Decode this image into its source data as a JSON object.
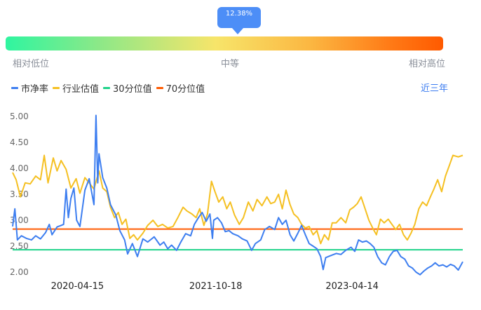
{
  "marker": {
    "label": "12.38%"
  },
  "scale": {
    "low": "相对低位",
    "mid": "中等",
    "high": "相对高位"
  },
  "legend": [
    {
      "label": "市净率",
      "color": "#3d7ef0"
    },
    {
      "label": "行业估值",
      "color": "#f5c022"
    },
    {
      "label": "30分位值",
      "color": "#1fd28a"
    },
    {
      "label": "70分位值",
      "color": "#ff5a00"
    }
  ],
  "range_label": "近三年",
  "chart_data": {
    "type": "line",
    "ylim": [
      2.0,
      5.0
    ],
    "yticks": [
      "2.00",
      "2.50",
      "3.00",
      "3.50",
      "4.00",
      "4.50",
      "5.00"
    ],
    "x_range": [
      "2019-08-01",
      "2024-06-28"
    ],
    "xticks": [
      "2020-04-15",
      "2021-10-18",
      "2023-04-14"
    ],
    "reference_lines": [
      {
        "name": "30分位值",
        "value": 2.43,
        "color": "#1fd28a"
      },
      {
        "name": "70分位值",
        "value": 2.83,
        "color": "#ff5a00"
      }
    ],
    "series": [
      {
        "name": "市净率",
        "color": "#3d7ef0",
        "points": [
          [
            "2019-08-01",
            2.88
          ],
          [
            "2019-08-10",
            3.22
          ],
          [
            "2019-08-20",
            2.62
          ],
          [
            "2019-09-05",
            2.7
          ],
          [
            "2019-09-25",
            2.65
          ],
          [
            "2019-10-15",
            2.62
          ],
          [
            "2019-11-01",
            2.7
          ],
          [
            "2019-11-20",
            2.64
          ],
          [
            "2019-12-10",
            2.76
          ],
          [
            "2019-12-25",
            2.92
          ],
          [
            "2020-01-05",
            2.72
          ],
          [
            "2020-01-25",
            2.87
          ],
          [
            "2020-02-10",
            2.9
          ],
          [
            "2020-02-20",
            2.92
          ],
          [
            "2020-03-01",
            3.6
          ],
          [
            "2020-03-10",
            3.05
          ],
          [
            "2020-03-20",
            3.42
          ],
          [
            "2020-04-01",
            3.62
          ],
          [
            "2020-04-12",
            3.0
          ],
          [
            "2020-04-25",
            2.88
          ],
          [
            "2020-05-15",
            3.58
          ],
          [
            "2020-06-01",
            3.8
          ],
          [
            "2020-06-20",
            3.3
          ],
          [
            "2020-06-28",
            5.02
          ],
          [
            "2020-07-05",
            3.72
          ],
          [
            "2020-07-10",
            4.28
          ],
          [
            "2020-07-25",
            3.82
          ],
          [
            "2020-08-10",
            3.62
          ],
          [
            "2020-08-25",
            3.3
          ],
          [
            "2020-09-15",
            3.1
          ],
          [
            "2020-10-01",
            2.8
          ],
          [
            "2020-10-20",
            2.62
          ],
          [
            "2020-11-01",
            2.35
          ],
          [
            "2020-11-20",
            2.55
          ],
          [
            "2020-12-10",
            2.3
          ],
          [
            "2021-01-01",
            2.64
          ],
          [
            "2021-01-20",
            2.58
          ],
          [
            "2021-02-15",
            2.68
          ],
          [
            "2021-03-10",
            2.52
          ],
          [
            "2021-03-25",
            2.58
          ],
          [
            "2021-04-10",
            2.45
          ],
          [
            "2021-04-25",
            2.52
          ],
          [
            "2021-05-15",
            2.42
          ],
          [
            "2021-06-01",
            2.58
          ],
          [
            "2021-06-20",
            2.74
          ],
          [
            "2021-07-10",
            2.7
          ],
          [
            "2021-07-25",
            2.92
          ],
          [
            "2021-08-10",
            3.05
          ],
          [
            "2021-08-25",
            3.15
          ],
          [
            "2021-09-10",
            2.98
          ],
          [
            "2021-09-25",
            3.12
          ],
          [
            "2021-10-05",
            2.65
          ],
          [
            "2021-10-10",
            3.0
          ],
          [
            "2021-10-25",
            3.05
          ],
          [
            "2021-11-10",
            2.95
          ],
          [
            "2021-11-25",
            2.78
          ],
          [
            "2021-12-10",
            2.8
          ],
          [
            "2021-12-25",
            2.74
          ],
          [
            "2022-01-15",
            2.7
          ],
          [
            "2022-02-01",
            2.64
          ],
          [
            "2022-02-20",
            2.6
          ],
          [
            "2022-03-10",
            2.42
          ],
          [
            "2022-03-25",
            2.55
          ],
          [
            "2022-04-15",
            2.62
          ],
          [
            "2022-05-01",
            2.82
          ],
          [
            "2022-05-20",
            2.88
          ],
          [
            "2022-06-10",
            2.82
          ],
          [
            "2022-06-25",
            3.05
          ],
          [
            "2022-07-10",
            2.92
          ],
          [
            "2022-07-25",
            3.0
          ],
          [
            "2022-08-10",
            2.72
          ],
          [
            "2022-08-25",
            2.6
          ],
          [
            "2022-09-10",
            2.75
          ],
          [
            "2022-09-25",
            2.9
          ],
          [
            "2022-10-10",
            2.72
          ],
          [
            "2022-10-25",
            2.55
          ],
          [
            "2022-11-10",
            2.5
          ],
          [
            "2022-11-25",
            2.45
          ],
          [
            "2022-12-10",
            2.3
          ],
          [
            "2022-12-20",
            2.05
          ],
          [
            "2022-12-30",
            2.28
          ],
          [
            "2023-01-20",
            2.32
          ],
          [
            "2023-02-10",
            2.36
          ],
          [
            "2023-03-01",
            2.34
          ],
          [
            "2023-03-20",
            2.42
          ],
          [
            "2023-04-10",
            2.48
          ],
          [
            "2023-04-25",
            2.4
          ],
          [
            "2023-05-10",
            2.62
          ],
          [
            "2023-05-25",
            2.58
          ],
          [
            "2023-06-10",
            2.6
          ],
          [
            "2023-06-25",
            2.55
          ],
          [
            "2023-07-10",
            2.48
          ],
          [
            "2023-07-25",
            2.3
          ],
          [
            "2023-08-10",
            2.18
          ],
          [
            "2023-08-25",
            2.14
          ],
          [
            "2023-09-10",
            2.3
          ],
          [
            "2023-09-25",
            2.4
          ],
          [
            "2023-10-10",
            2.42
          ],
          [
            "2023-10-25",
            2.3
          ],
          [
            "2023-11-10",
            2.25
          ],
          [
            "2023-11-25",
            2.12
          ],
          [
            "2023-12-10",
            2.08
          ],
          [
            "2023-12-25",
            2.0
          ],
          [
            "2024-01-10",
            1.95
          ],
          [
            "2024-01-25",
            2.02
          ],
          [
            "2024-02-10",
            2.08
          ],
          [
            "2024-02-25",
            2.12
          ],
          [
            "2024-03-10",
            2.18
          ],
          [
            "2024-03-25",
            2.12
          ],
          [
            "2024-04-10",
            2.14
          ],
          [
            "2024-04-25",
            2.1
          ],
          [
            "2024-05-10",
            2.15
          ],
          [
            "2024-05-25",
            2.12
          ],
          [
            "2024-06-10",
            2.04
          ],
          [
            "2024-06-28",
            2.2
          ]
        ]
      },
      {
        "name": "行业估值",
        "color": "#f5c022",
        "points": [
          [
            "2019-08-01",
            3.92
          ],
          [
            "2019-08-15",
            3.78
          ],
          [
            "2019-09-01",
            3.45
          ],
          [
            "2019-09-20",
            3.72
          ],
          [
            "2019-10-10",
            3.7
          ],
          [
            "2019-11-01",
            3.85
          ],
          [
            "2019-11-20",
            3.78
          ],
          [
            "2019-12-05",
            4.25
          ],
          [
            "2019-12-20",
            3.72
          ],
          [
            "2020-01-10",
            4.2
          ],
          [
            "2020-01-25",
            3.95
          ],
          [
            "2020-02-10",
            4.15
          ],
          [
            "2020-03-01",
            3.98
          ],
          [
            "2020-03-20",
            3.62
          ],
          [
            "2020-04-10",
            3.8
          ],
          [
            "2020-04-25",
            3.52
          ],
          [
            "2020-05-15",
            3.82
          ],
          [
            "2020-06-01",
            3.72
          ],
          [
            "2020-06-20",
            3.6
          ],
          [
            "2020-07-10",
            3.95
          ],
          [
            "2020-07-25",
            3.62
          ],
          [
            "2020-08-10",
            3.55
          ],
          [
            "2020-08-25",
            3.25
          ],
          [
            "2020-09-10",
            3.05
          ],
          [
            "2020-09-25",
            3.15
          ],
          [
            "2020-10-10",
            2.92
          ],
          [
            "2020-10-25",
            3.02
          ],
          [
            "2020-11-10",
            2.65
          ],
          [
            "2020-11-25",
            2.72
          ],
          [
            "2020-12-10",
            2.62
          ],
          [
            "2021-01-01",
            2.75
          ],
          [
            "2021-01-20",
            2.9
          ],
          [
            "2021-02-10",
            3.0
          ],
          [
            "2021-03-01",
            2.88
          ],
          [
            "2021-03-20",
            2.92
          ],
          [
            "2021-04-10",
            2.85
          ],
          [
            "2021-05-01",
            2.88
          ],
          [
            "2021-05-20",
            3.05
          ],
          [
            "2021-06-10",
            3.25
          ],
          [
            "2021-06-25",
            3.18
          ],
          [
            "2021-07-15",
            3.12
          ],
          [
            "2021-08-01",
            3.05
          ],
          [
            "2021-08-15",
            3.22
          ],
          [
            "2021-09-01",
            2.9
          ],
          [
            "2021-09-15",
            3.12
          ],
          [
            "2021-10-01",
            3.75
          ],
          [
            "2021-10-15",
            3.55
          ],
          [
            "2021-10-30",
            3.35
          ],
          [
            "2021-11-15",
            3.45
          ],
          [
            "2021-12-01",
            3.22
          ],
          [
            "2021-12-15",
            3.35
          ],
          [
            "2022-01-01",
            3.1
          ],
          [
            "2022-01-20",
            2.92
          ],
          [
            "2022-02-05",
            3.05
          ],
          [
            "2022-02-25",
            3.35
          ],
          [
            "2022-03-15",
            3.18
          ],
          [
            "2022-04-01",
            3.4
          ],
          [
            "2022-04-20",
            3.28
          ],
          [
            "2022-05-10",
            3.45
          ],
          [
            "2022-05-25",
            3.32
          ],
          [
            "2022-06-10",
            3.35
          ],
          [
            "2022-06-25",
            3.5
          ],
          [
            "2022-07-10",
            3.22
          ],
          [
            "2022-07-25",
            3.58
          ],
          [
            "2022-08-10",
            3.3
          ],
          [
            "2022-08-25",
            3.12
          ],
          [
            "2022-09-10",
            3.05
          ],
          [
            "2022-09-25",
            2.92
          ],
          [
            "2022-10-10",
            2.85
          ],
          [
            "2022-10-25",
            2.88
          ],
          [
            "2022-11-10",
            2.72
          ],
          [
            "2022-11-25",
            2.8
          ],
          [
            "2022-12-10",
            2.55
          ],
          [
            "2022-12-25",
            2.72
          ],
          [
            "2023-01-10",
            2.62
          ],
          [
            "2023-01-25",
            2.95
          ],
          [
            "2023-02-10",
            2.95
          ],
          [
            "2023-03-01",
            3.05
          ],
          [
            "2023-03-20",
            2.95
          ],
          [
            "2023-04-05",
            3.2
          ],
          [
            "2023-04-20",
            3.25
          ],
          [
            "2023-05-05",
            3.32
          ],
          [
            "2023-05-20",
            3.45
          ],
          [
            "2023-06-05",
            3.22
          ],
          [
            "2023-06-20",
            3.0
          ],
          [
            "2023-07-05",
            2.85
          ],
          [
            "2023-07-20",
            2.72
          ],
          [
            "2023-08-05",
            3.02
          ],
          [
            "2023-08-20",
            2.95
          ],
          [
            "2023-09-05",
            3.02
          ],
          [
            "2023-09-20",
            2.92
          ],
          [
            "2023-10-05",
            2.82
          ],
          [
            "2023-10-20",
            2.92
          ],
          [
            "2023-11-05",
            2.72
          ],
          [
            "2023-11-20",
            2.62
          ],
          [
            "2023-12-05",
            2.75
          ],
          [
            "2023-12-20",
            2.92
          ],
          [
            "2024-01-05",
            3.22
          ],
          [
            "2024-01-20",
            3.35
          ],
          [
            "2024-02-05",
            3.28
          ],
          [
            "2024-02-20",
            3.45
          ],
          [
            "2024-03-05",
            3.6
          ],
          [
            "2024-03-20",
            3.78
          ],
          [
            "2024-04-05",
            3.55
          ],
          [
            "2024-04-20",
            3.85
          ],
          [
            "2024-05-05",
            4.05
          ],
          [
            "2024-05-20",
            4.25
          ],
          [
            "2024-06-10",
            4.22
          ],
          [
            "2024-06-28",
            4.25
          ]
        ]
      }
    ]
  }
}
